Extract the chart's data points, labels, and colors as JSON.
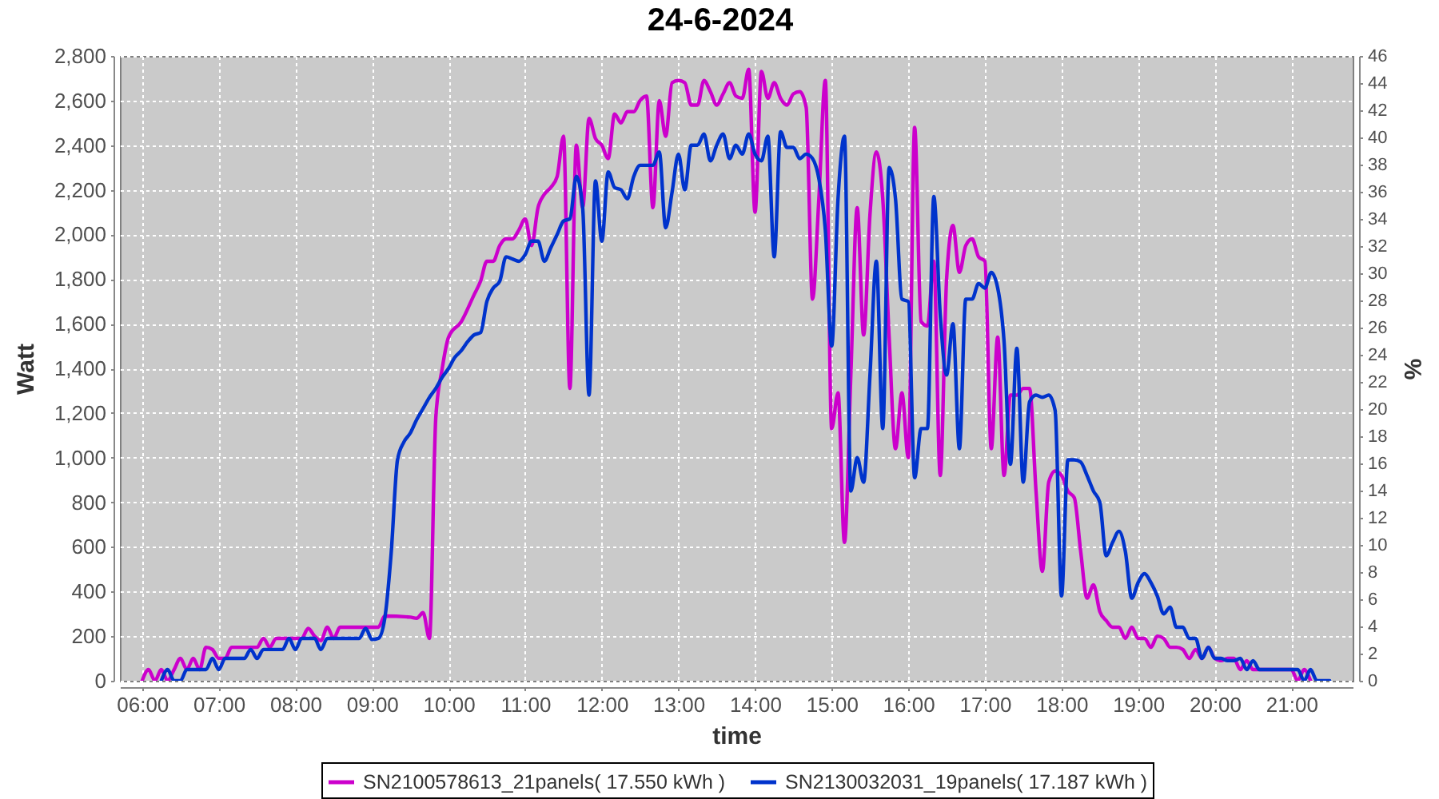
{
  "chart_data": {
    "type": "line",
    "title": "24-6-2024",
    "xlabel": "time",
    "ylabel": "Watt",
    "y2label": "%",
    "xlim": [
      5.71,
      21.8
    ],
    "xticks": [
      {
        "value": 6,
        "label": "06:00"
      },
      {
        "value": 7,
        "label": "07:00"
      },
      {
        "value": 8,
        "label": "08:00"
      },
      {
        "value": 9,
        "label": "09:00"
      },
      {
        "value": 10,
        "label": "10:00"
      },
      {
        "value": 11,
        "label": "11:00"
      },
      {
        "value": 12,
        "label": "12:00"
      },
      {
        "value": 13,
        "label": "13:00"
      },
      {
        "value": 14,
        "label": "14:00"
      },
      {
        "value": 15,
        "label": "15:00"
      },
      {
        "value": 16,
        "label": "16:00"
      },
      {
        "value": 17,
        "label": "17:00"
      },
      {
        "value": 18,
        "label": "18:00"
      },
      {
        "value": 19,
        "label": "19:00"
      },
      {
        "value": 20,
        "label": "20:00"
      },
      {
        "value": 21,
        "label": "21:00"
      }
    ],
    "ylim": [
      0,
      2800
    ],
    "yticks": [
      0,
      200,
      400,
      600,
      800,
      {
        "value": 1000,
        "label": "1,000"
      },
      {
        "value": 1200,
        "label": "1,200"
      },
      {
        "value": 1400,
        "label": "1,400"
      },
      {
        "value": 1600,
        "label": "1,600"
      },
      {
        "value": 1800,
        "label": "1,800"
      },
      {
        "value": 2000,
        "label": "2,000"
      },
      {
        "value": 2200,
        "label": "2,200"
      },
      {
        "value": 2400,
        "label": "2,400"
      },
      {
        "value": 2600,
        "label": "2,600"
      },
      {
        "value": 2800,
        "label": "2,800"
      }
    ],
    "y2lim": [
      0,
      46
    ],
    "y2ticks": [
      0,
      2,
      4,
      6,
      8,
      10,
      12,
      14,
      16,
      18,
      20,
      22,
      24,
      26,
      28,
      30,
      32,
      34,
      36,
      38,
      40,
      42,
      44,
      46
    ],
    "grid": true,
    "legend": "bottom",
    "series": [
      {
        "name": "SN2100578613_21panels( 17.550 kWh )",
        "color": "#cc00cc",
        "x": [
          6,
          6.083,
          6.167,
          6.25,
          6.333,
          6.417,
          6.5,
          6.583,
          6.667,
          6.75,
          6.833,
          6.917,
          7,
          7.083,
          7.167,
          7.5,
          7.583,
          7.667,
          7.75,
          8.083,
          8.167,
          8.25,
          8.333,
          8.417,
          8.5,
          8.583,
          9.083,
          9.167,
          9.5,
          9.583,
          9.667,
          9.75,
          9.833,
          9.917,
          10,
          10.167,
          10.333,
          10.417,
          10.5,
          10.583,
          10.667,
          10.75,
          10.833,
          10.917,
          11,
          11.083,
          11.167,
          11.25,
          11.333,
          11.417,
          11.5,
          11.583,
          11.667,
          11.75,
          11.833,
          11.917,
          12,
          12.083,
          12.167,
          12.25,
          12.333,
          12.417,
          12.5,
          12.583,
          12.667,
          12.75,
          12.833,
          12.917,
          13,
          13.083,
          13.167,
          13.25,
          13.333,
          13.417,
          13.5,
          13.583,
          13.667,
          13.75,
          13.833,
          13.917,
          14,
          14.083,
          14.167,
          14.25,
          14.333,
          14.417,
          14.5,
          14.583,
          14.667,
          14.75,
          14.833,
          14.917,
          15,
          15.083,
          15.167,
          15.25,
          15.333,
          15.417,
          15.5,
          15.583,
          15.667,
          15.75,
          15.833,
          15.917,
          16,
          16.083,
          16.167,
          16.25,
          16.333,
          16.417,
          16.5,
          16.583,
          16.667,
          16.75,
          16.833,
          16.917,
          17,
          17.083,
          17.167,
          17.25,
          17.333,
          17.417,
          17.5,
          17.583,
          17.667,
          17.75,
          17.833,
          17.917,
          18,
          18.083,
          18.167,
          18.25,
          18.333,
          18.417,
          18.5,
          18.583,
          18.667,
          18.75,
          18.833,
          18.917,
          19,
          19.083,
          19.167,
          19.25,
          19.333,
          19.417,
          19.5,
          19.583,
          19.667,
          19.75,
          19.833,
          19.917,
          20,
          20.083,
          20.167,
          20.25,
          20.333,
          20.417,
          20.5,
          21,
          21.083,
          21.167,
          21.25
        ],
        "values": [
          0,
          50,
          0,
          50,
          0,
          50,
          100,
          50,
          100,
          50,
          150,
          140,
          100,
          100,
          150,
          150,
          190,
          150,
          190,
          190,
          235,
          200,
          180,
          240,
          190,
          240,
          240,
          290,
          285,
          280,
          305,
          190,
          1180,
          1400,
          1540,
          1610,
          1730,
          1790,
          1880,
          1880,
          1950,
          1980,
          1980,
          2020,
          2070,
          1950,
          2120,
          2180,
          2210,
          2260,
          2440,
          1310,
          2400,
          2120,
          2520,
          2430,
          2400,
          2340,
          2540,
          2500,
          2550,
          2550,
          2600,
          2620,
          2120,
          2600,
          2440,
          2680,
          2690,
          2680,
          2580,
          2580,
          2690,
          2640,
          2580,
          2630,
          2680,
          2620,
          2610,
          2740,
          2100,
          2730,
          2610,
          2680,
          2610,
          2580,
          2630,
          2640,
          2570,
          1710,
          2160,
          2690,
          1130,
          1290,
          620,
          1370,
          2120,
          1550,
          2090,
          2370,
          2160,
          1540,
          1040,
          1290,
          1000,
          2480,
          1610,
          1590,
          1880,
          920,
          1800,
          2040,
          1830,
          1950,
          1980,
          1900,
          1880,
          1040,
          1540,
          920,
          1280,
          1280,
          1310,
          1310,
          850,
          490,
          890,
          940,
          920,
          850,
          820,
          580,
          370,
          430,
          310,
          270,
          240,
          240,
          190,
          240,
          190,
          190,
          150,
          200,
          190,
          150,
          150,
          140,
          100,
          140,
          100,
          150,
          100,
          90,
          100,
          100,
          50,
          90,
          50,
          50,
          0,
          50,
          0
        ]
      },
      {
        "name": "SN2130032031_19panels( 17.187 kWh )",
        "color": "#0033cc",
        "x": [
          6.25,
          6.333,
          6.417,
          6.5,
          6.583,
          6.833,
          6.917,
          7,
          7.083,
          7.333,
          7.417,
          7.5,
          7.583,
          7.833,
          7.917,
          8,
          8.083,
          8.167,
          8.25,
          8.333,
          8.417,
          8.833,
          8.917,
          9,
          9.083,
          9.167,
          9.25,
          9.333,
          9.417,
          9.5,
          9.583,
          9.667,
          9.75,
          9.833,
          9.917,
          10,
          10.083,
          10.167,
          10.25,
          10.333,
          10.417,
          10.5,
          10.583,
          10.667,
          10.75,
          10.833,
          10.917,
          11,
          11.083,
          11.167,
          11.25,
          11.333,
          11.417,
          11.5,
          11.583,
          11.667,
          11.75,
          11.833,
          11.917,
          12,
          12.083,
          12.167,
          12.25,
          12.333,
          12.417,
          12.5,
          12.583,
          12.667,
          12.75,
          12.833,
          12.917,
          13,
          13.083,
          13.167,
          13.25,
          13.333,
          13.417,
          13.5,
          13.583,
          13.667,
          13.75,
          13.833,
          13.917,
          14,
          14.083,
          14.167,
          14.25,
          14.333,
          14.417,
          14.5,
          14.583,
          14.667,
          14.75,
          14.833,
          14.917,
          15,
          15.083,
          15.167,
          15.25,
          15.333,
          15.417,
          15.5,
          15.583,
          15.667,
          15.75,
          15.833,
          15.917,
          16,
          16.083,
          16.167,
          16.25,
          16.333,
          16.417,
          16.5,
          16.583,
          16.667,
          16.75,
          16.833,
          16.917,
          17,
          17.083,
          17.167,
          17.25,
          17.333,
          17.417,
          17.5,
          17.583,
          17.667,
          17.75,
          17.833,
          17.917,
          18,
          18.083,
          18.167,
          18.25,
          18.333,
          18.417,
          18.5,
          18.583,
          18.667,
          18.75,
          18.833,
          18.917,
          19,
          19.083,
          19.167,
          19.25,
          19.333,
          19.417,
          19.5,
          19.583,
          19.667,
          19.75,
          19.833,
          19.917,
          20,
          20.083,
          20.167,
          20.25,
          20.333,
          20.417,
          20.5,
          20.583,
          21.083,
          21.167,
          21.25,
          21.333,
          21.5
        ],
        "values": [
          0,
          50,
          0,
          0,
          50,
          50,
          100,
          50,
          100,
          100,
          140,
          100,
          140,
          140,
          190,
          140,
          190,
          190,
          190,
          140,
          190,
          190,
          235,
          185,
          190,
          280,
          570,
          990,
          1070,
          1110,
          1170,
          1220,
          1270,
          1310,
          1360,
          1400,
          1450,
          1480,
          1520,
          1550,
          1560,
          1700,
          1760,
          1790,
          1900,
          1890,
          1880,
          1910,
          1970,
          1970,
          1880,
          1940,
          2000,
          2060,
          2070,
          2260,
          2120,
          1280,
          2240,
          1970,
          2280,
          2210,
          2200,
          2160,
          2260,
          2310,
          2310,
          2310,
          2370,
          2030,
          2190,
          2360,
          2200,
          2400,
          2400,
          2450,
          2330,
          2400,
          2450,
          2340,
          2400,
          2360,
          2450,
          2360,
          2330,
          2440,
          1900,
          2460,
          2390,
          2390,
          2340,
          2360,
          2340,
          2250,
          2020,
          1500,
          2160,
          2440,
          850,
          1000,
          890,
          1370,
          1880,
          1130,
          2300,
          2160,
          1710,
          1700,
          910,
          1130,
          1130,
          2170,
          1640,
          1370,
          1600,
          1040,
          1710,
          1710,
          1780,
          1760,
          1830,
          1760,
          1520,
          970,
          1490,
          890,
          1250,
          1280,
          1270,
          1280,
          1210,
          380,
          990,
          990,
          980,
          920,
          850,
          800,
          560,
          620,
          670,
          580,
          370,
          440,
          480,
          440,
          380,
          300,
          330,
          240,
          240,
          190,
          190,
          100,
          150,
          100,
          100,
          90,
          90,
          100,
          50,
          90,
          50,
          50,
          0,
          50,
          0,
          0
        ]
      }
    ]
  }
}
